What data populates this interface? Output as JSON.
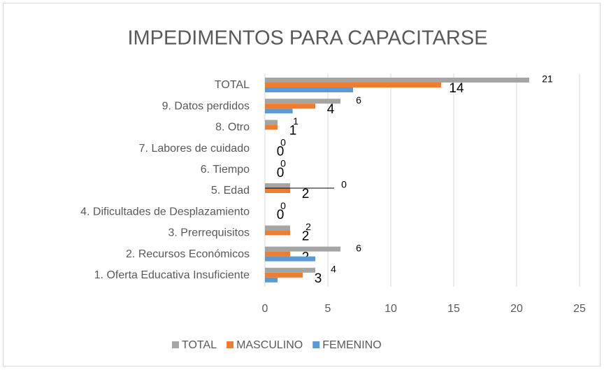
{
  "chart_data": {
    "type": "hbar",
    "title": "IMPEDIMENTOS PARA CAPACITARSE",
    "categories": [
      "TOTAL",
      "9. Datos perdidos",
      "8. Otro",
      "7. Labores de cuidado",
      "6. Tiempo",
      "5. Edad",
      "4. Dificultades de Desplazamiento",
      "3. Prerrequisitos",
      "2. Recursos Económicos",
      "1. Oferta Educativa Insuficiente"
    ],
    "series": [
      {
        "name": "TOTAL",
        "color": "#a5a5a5",
        "values": [
          21,
          6,
          1,
          0,
          0,
          2,
          0,
          2,
          6,
          4
        ],
        "value_labels": [
          "21",
          "6",
          "1",
          "0",
          "0",
          null,
          "0",
          "2",
          "6",
          "4"
        ]
      },
      {
        "name": "MASCULINO",
        "color": "#ed7d31",
        "values": [
          14,
          4,
          1,
          0,
          0,
          2,
          0,
          2,
          2,
          3
        ],
        "value_labels": [
          "14",
          "4",
          "1",
          "0",
          "0",
          "2",
          "0",
          "2",
          "2",
          "3"
        ]
      },
      {
        "name": "FEMENINO",
        "color": "#5b9bd5",
        "values": [
          7,
          2.2,
          0,
          0,
          0,
          0,
          0,
          0,
          4,
          1
        ]
      }
    ],
    "annotations": [
      {
        "category": "5. Edad",
        "text": "0"
      }
    ],
    "xlim": [
      0,
      25
    ],
    "xticks": [
      0,
      5,
      10,
      15,
      20,
      25
    ],
    "grid": true,
    "legend": "bottom"
  }
}
